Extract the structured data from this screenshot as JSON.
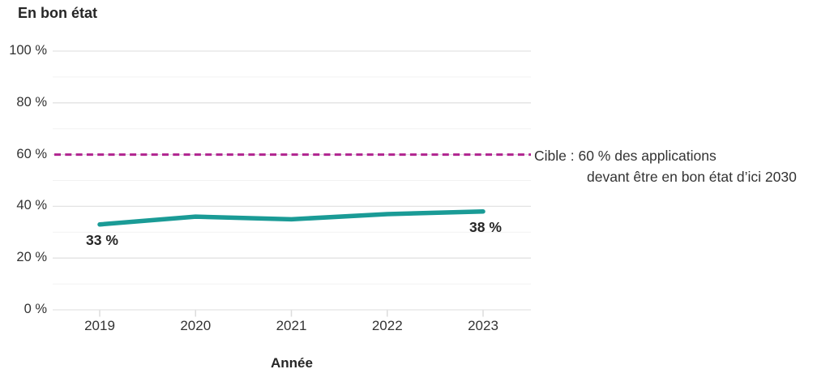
{
  "title": "En bon état",
  "x_axis_title": "Année",
  "annotation": {
    "line1": "Cible : 60 % des applications",
    "line2": "devant être en bon état d’ici 2030"
  },
  "colors": {
    "line": "#1A9B96",
    "target": "#B0238F",
    "grid_major": "#E3E3E3",
    "grid_minor": "#F2F2F2",
    "tick": "#DCDCDC",
    "text": "#333333",
    "text_strong": "#262626"
  },
  "chart_data": {
    "type": "line",
    "title": "En bon état",
    "xlabel": "Année",
    "ylabel": "",
    "x": [
      "2019",
      "2020",
      "2021",
      "2022",
      "2023"
    ],
    "series": [
      {
        "name": "En bon état",
        "values": [
          33,
          36,
          35,
          37,
          38
        ]
      }
    ],
    "ylim": [
      0,
      100
    ],
    "y_major_ticks": [
      0,
      20,
      40,
      60,
      80,
      100
    ],
    "y_minor_ticks": [
      10,
      30,
      50,
      70,
      90
    ],
    "y_tick_labels": [
      "0 %",
      "20 %",
      "40 %",
      "60 %",
      "80 %",
      "100 %"
    ],
    "grid": "horizontal",
    "target_line": {
      "value": 60,
      "style": "dashed",
      "label_line1": "Cible : 60 % des applications",
      "label_line2": "devant être en bon état d’ici 2030"
    },
    "point_labels": {
      "start": "33 %",
      "end": "38 %"
    },
    "legend_position": "none"
  }
}
